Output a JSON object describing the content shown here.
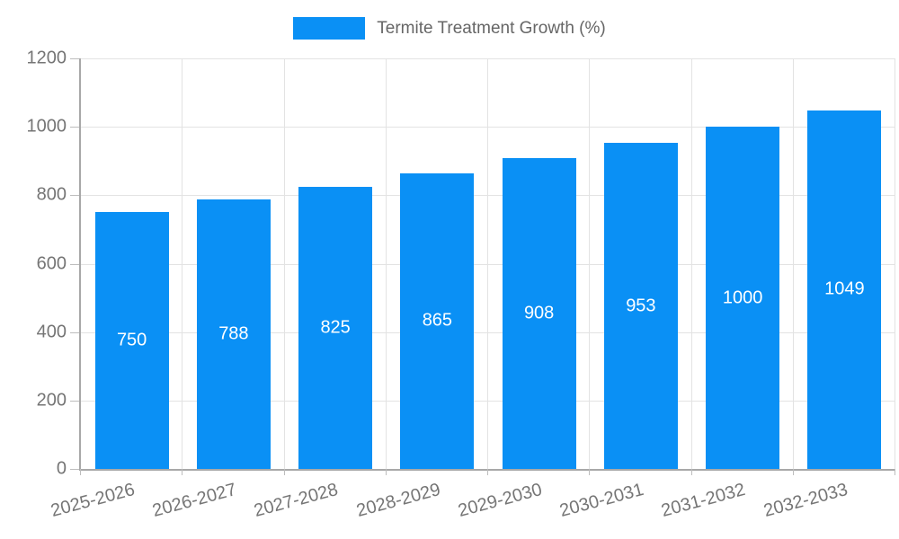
{
  "chart_data": {
    "type": "bar",
    "title": "Termite Treatment Growth (%)",
    "categories": [
      "2025-2026",
      "2026-2027",
      "2027-2028",
      "2028-2029",
      "2029-2030",
      "2030-2031",
      "2031-2032",
      "2032-2033"
    ],
    "values": [
      750,
      788,
      825,
      865,
      908,
      953,
      1000,
      1049
    ],
    "xlabel": "",
    "ylabel": "",
    "ylim": [
      0,
      1200
    ],
    "yticks": [
      0,
      200,
      400,
      600,
      800,
      1000,
      1200
    ],
    "grid": "horizontal and vertical gridlines on",
    "legend_position": "top-center",
    "value_labels": "white, centered inside bars",
    "colors": {
      "bar": "#0a90f5",
      "grid_line": "#e3e3e3",
      "axis_line": "#a8a8a8",
      "tick_mark": "#bdbdbd",
      "tick_text": "#757575",
      "legend_text": "#666666",
      "value_label_text": "#ffffff",
      "background": "#ffffff"
    }
  }
}
